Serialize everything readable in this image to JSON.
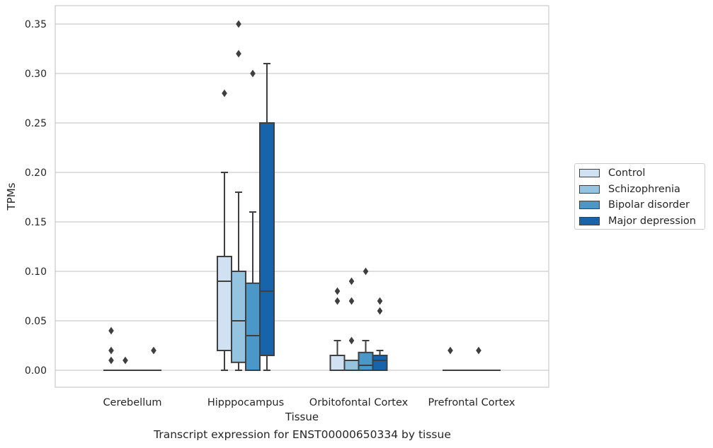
{
  "chart_data": {
    "type": "boxplot",
    "xlabel": "Tissue",
    "ylabel": "TPMs",
    "ylim": [
      -0.017,
      0.367
    ],
    "yticks": [
      "0.00",
      "0.05",
      "0.10",
      "0.15",
      "0.20",
      "0.25",
      "0.30",
      "0.35"
    ],
    "grid": "horizontal",
    "legend_position": "right",
    "categories": [
      "Cerebellum",
      "Hipppocampus",
      "Orbitofontal Cortex",
      "Prefrontal Cortex"
    ],
    "series": [
      {
        "name": "Control",
        "color": "#d0e1f2",
        "boxes": [
          {
            "q1": 0,
            "median": 0,
            "q3": 0,
            "whisker_low": 0,
            "whisker_high": 0,
            "outliers": [
              0.04,
              0.02,
              0.01
            ]
          },
          {
            "q1": 0.02,
            "median": 0.09,
            "q3": 0.115,
            "whisker_low": 0,
            "whisker_high": 0.2,
            "outliers": [
              0.28
            ]
          },
          {
            "q1": 0,
            "median": 0,
            "q3": 0.015,
            "whisker_low": 0,
            "whisker_high": 0.03,
            "outliers": [
              0.08,
              0.07
            ]
          },
          {
            "q1": 0,
            "median": 0,
            "q3": 0,
            "whisker_low": 0,
            "whisker_high": 0,
            "outliers": [
              0.02
            ]
          }
        ]
      },
      {
        "name": "Schizophrenia",
        "color": "#94c4df",
        "boxes": [
          {
            "q1": 0,
            "median": 0,
            "q3": 0,
            "whisker_low": 0,
            "whisker_high": 0,
            "outliers": [
              0.01
            ]
          },
          {
            "q1": 0.008,
            "median": 0.05,
            "q3": 0.1,
            "whisker_low": 0,
            "whisker_high": 0.18,
            "outliers": [
              0.35,
              0.32
            ]
          },
          {
            "q1": 0,
            "median": 0,
            "q3": 0.01,
            "whisker_low": 0,
            "whisker_high": 0.01,
            "outliers": [
              0.09,
              0.07,
              0.03
            ]
          },
          {
            "q1": 0,
            "median": 0,
            "q3": 0,
            "whisker_low": 0,
            "whisker_high": 0,
            "outliers": []
          }
        ]
      },
      {
        "name": "Bipolar disorder",
        "color": "#4a98c9",
        "boxes": [
          {
            "q1": 0,
            "median": 0,
            "q3": 0,
            "whisker_low": 0,
            "whisker_high": 0,
            "outliers": []
          },
          {
            "q1": 0,
            "median": 0.035,
            "q3": 0.088,
            "whisker_low": 0,
            "whisker_high": 0.16,
            "outliers": [
              0.3
            ]
          },
          {
            "q1": 0,
            "median": 0.005,
            "q3": 0.018,
            "whisker_low": 0,
            "whisker_high": 0.03,
            "outliers": [
              0.1
            ]
          },
          {
            "q1": 0,
            "median": 0,
            "q3": 0,
            "whisker_low": 0,
            "whisker_high": 0,
            "outliers": [
              0.02
            ]
          }
        ]
      },
      {
        "name": "Major depression",
        "color": "#1764ab",
        "boxes": [
          {
            "q1": 0,
            "median": 0,
            "q3": 0,
            "whisker_low": 0,
            "whisker_high": 0,
            "outliers": [
              0.02
            ]
          },
          {
            "q1": 0.015,
            "median": 0.08,
            "q3": 0.25,
            "whisker_low": 0,
            "whisker_high": 0.31,
            "outliers": []
          },
          {
            "q1": 0,
            "median": 0.01,
            "q3": 0.015,
            "whisker_low": 0,
            "whisker_high": 0.02,
            "outliers": [
              0.07,
              0.06
            ]
          },
          {
            "q1": 0,
            "median": 0,
            "q3": 0,
            "whisker_low": 0,
            "whisker_high": 0,
            "outliers": []
          }
        ]
      }
    ]
  },
  "caption": "Transcript expression for ENST00000650334 by tissue"
}
